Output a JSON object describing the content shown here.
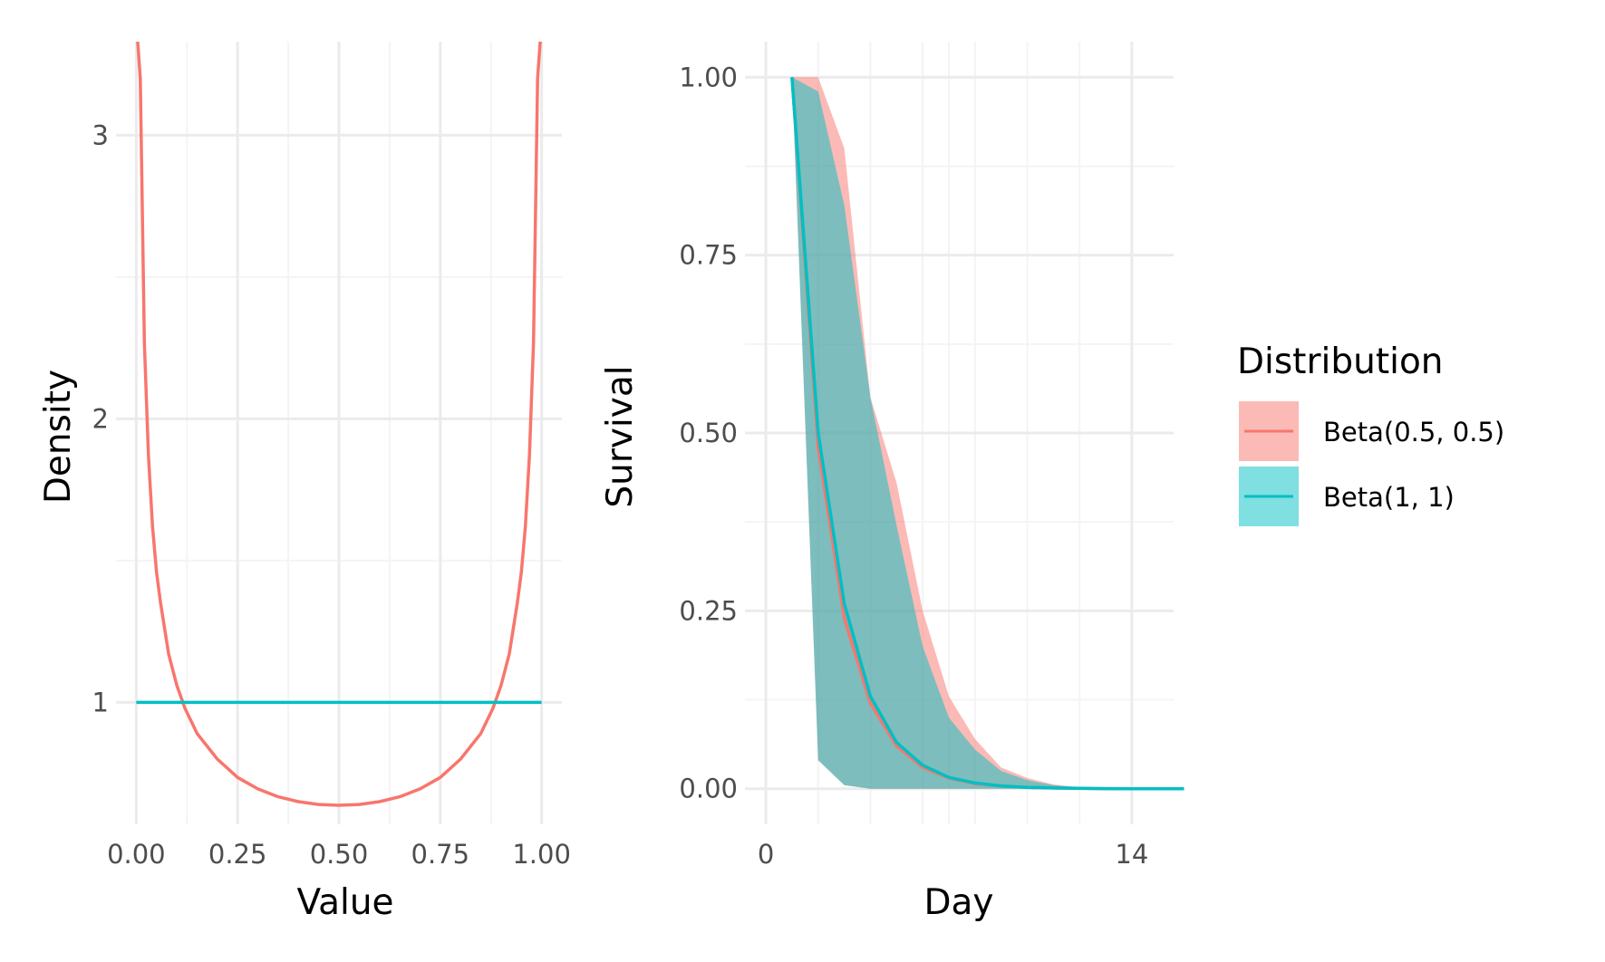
{
  "colors": {
    "beta_half": "#F8766D",
    "beta_one": "#00BFC4",
    "grid_major": "#EBEBEB",
    "grid_minor": "#F4F4F4",
    "tick_text": "#4D4D4D"
  },
  "legend": {
    "title": "Distribution",
    "items": [
      {
        "label": "Beta(0.5, 0.5)",
        "color": "#F8766D"
      },
      {
        "label": "Beta(1, 1)",
        "color": "#00BFC4"
      }
    ]
  },
  "chart_data": [
    {
      "type": "line",
      "title": "",
      "xlabel": "Value",
      "ylabel": "Density",
      "xlim": [
        -0.05,
        1.05
      ],
      "ylim": [
        0.57,
        3.33
      ],
      "x_ticks": [
        0,
        0.25,
        0.5,
        0.75,
        1
      ],
      "x_tick_labels": [
        "0.00",
        "0.25",
        "0.50",
        "0.75",
        "1.00"
      ],
      "y_ticks": [
        1,
        2,
        3
      ],
      "y_tick_labels": [
        "1",
        "2",
        "3"
      ],
      "grid": true,
      "series": [
        {
          "name": "Beta(0.5, 0.5)",
          "x": [
            0,
            0.01,
            0.02,
            0.03,
            0.04,
            0.05,
            0.06,
            0.08,
            0.1,
            0.12,
            0.15,
            0.2,
            0.25,
            0.3,
            0.35,
            0.4,
            0.45,
            0.5,
            0.55,
            0.6,
            0.65,
            0.7,
            0.75,
            0.8,
            0.85,
            0.88,
            0.9,
            0.92,
            0.94,
            0.95,
            0.96,
            0.97,
            0.98,
            0.99,
            1
          ],
          "y": [
            3.4,
            3.2,
            2.27,
            1.87,
            1.62,
            1.46,
            1.35,
            1.17,
            1.06,
            0.98,
            0.89,
            0.8,
            0.735,
            0.695,
            0.667,
            0.65,
            0.64,
            0.637,
            0.64,
            0.65,
            0.667,
            0.695,
            0.735,
            0.8,
            0.89,
            0.98,
            1.06,
            1.17,
            1.35,
            1.46,
            1.62,
            1.87,
            2.27,
            3.2,
            3.4
          ]
        },
        {
          "name": "Beta(1, 1)",
          "x": [
            0,
            1
          ],
          "y": [
            1,
            1
          ]
        }
      ]
    },
    {
      "type": "area",
      "title": "",
      "xlabel": "Day",
      "ylabel": "Survival",
      "xlim": [
        -0.8,
        15.6
      ],
      "ylim": [
        -0.05,
        1.05
      ],
      "x_ticks": [
        0,
        14
      ],
      "x_tick_labels": [
        "0",
        "14"
      ],
      "y_ticks": [
        0,
        0.25,
        0.5,
        0.75,
        1
      ],
      "y_tick_labels": [
        "0.00",
        "0.25",
        "0.50",
        "0.75",
        "1.00"
      ],
      "grid": true,
      "series": [
        {
          "name": "Beta(0.5, 0.5)",
          "x": [
            1,
            2,
            3,
            4,
            5,
            6,
            7,
            8,
            9,
            10,
            11,
            12,
            13,
            14,
            15,
            16
          ],
          "lower": [
            1.0,
            0.04,
            0.005,
            0.0,
            0.0,
            0.0,
            0.0,
            0.0,
            0.0,
            0.0,
            0.0,
            0.0,
            0.0,
            0.0,
            0.0,
            0.0
          ],
          "upper": [
            1.0,
            1.0,
            0.9,
            0.55,
            0.43,
            0.25,
            0.13,
            0.07,
            0.03,
            0.015,
            0.006,
            0.002,
            0.001,
            0.0,
            0.0,
            0.0
          ],
          "mid": [
            1.0,
            0.48,
            0.24,
            0.12,
            0.06,
            0.03,
            0.015,
            0.007,
            0.004,
            0.002,
            0.001,
            0.0005,
            0.0002,
            0.0,
            0.0,
            0.0
          ]
        },
        {
          "name": "Beta(1, 1)",
          "x": [
            1,
            2,
            3,
            4,
            5,
            6,
            7,
            8,
            9,
            10,
            11,
            12,
            13,
            14,
            15,
            16
          ],
          "lower": [
            1.0,
            0.04,
            0.005,
            0.0,
            0.0,
            0.0,
            0.0,
            0.0,
            0.0,
            0.0,
            0.0,
            0.0,
            0.0,
            0.0,
            0.0,
            0.0
          ],
          "upper": [
            1.0,
            0.98,
            0.82,
            0.55,
            0.37,
            0.2,
            0.1,
            0.055,
            0.025,
            0.012,
            0.005,
            0.002,
            0.001,
            0.0,
            0.0,
            0.0
          ],
          "mid": [
            1.0,
            0.5,
            0.26,
            0.13,
            0.065,
            0.033,
            0.016,
            0.008,
            0.004,
            0.002,
            0.001,
            0.0005,
            0.0002,
            0.0,
            0.0,
            0.0
          ]
        }
      ]
    }
  ]
}
